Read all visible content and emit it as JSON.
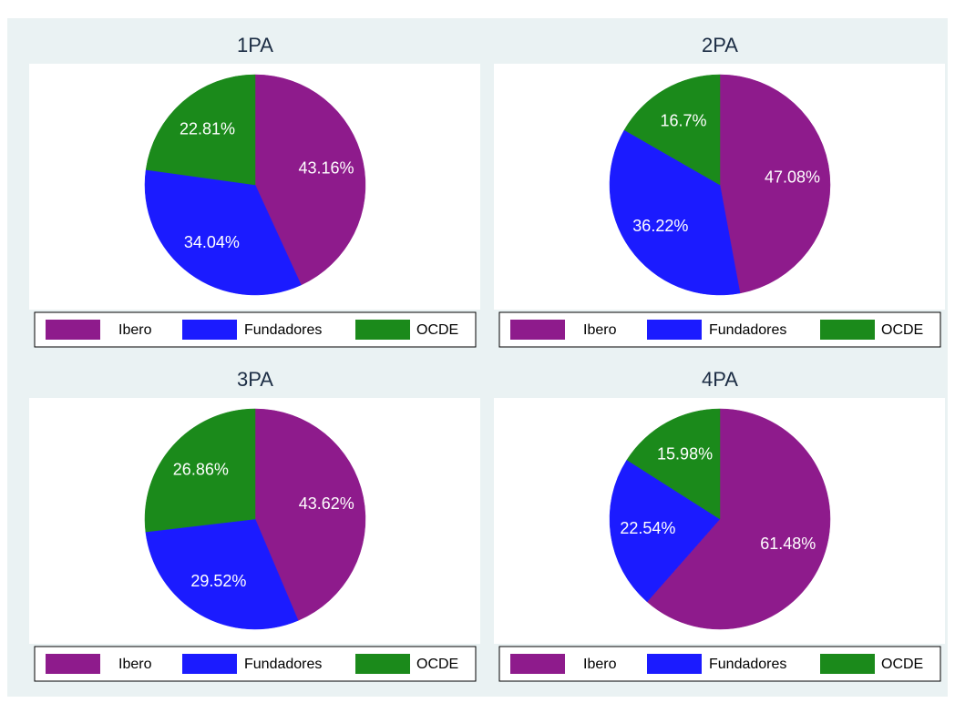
{
  "chart_data": [
    {
      "type": "pie",
      "title": "1PA",
      "categories": [
        "Ibero",
        "Fundadores",
        "OCDE"
      ],
      "values": [
        43.16,
        34.04,
        22.81
      ],
      "value_labels": [
        "43.16%",
        "34.04%",
        "22.81%"
      ],
      "colors": [
        "#8e1b8c",
        "#1b1bff",
        "#1b8a1b"
      ]
    },
    {
      "type": "pie",
      "title": "2PA",
      "categories": [
        "Ibero",
        "Fundadores",
        "OCDE"
      ],
      "values": [
        47.08,
        36.22,
        16.7
      ],
      "value_labels": [
        "47.08%",
        "36.22%",
        "16.7%"
      ],
      "colors": [
        "#8e1b8c",
        "#1b1bff",
        "#1b8a1b"
      ]
    },
    {
      "type": "pie",
      "title": "3PA",
      "categories": [
        "Ibero",
        "Fundadores",
        "OCDE"
      ],
      "values": [
        43.62,
        29.52,
        26.86
      ],
      "value_labels": [
        "43.62%",
        "29.52%",
        "26.86%"
      ],
      "colors": [
        "#8e1b8c",
        "#1b1bff",
        "#1b8a1b"
      ]
    },
    {
      "type": "pie",
      "title": "4PA",
      "categories": [
        "Ibero",
        "Fundadores",
        "OCDE"
      ],
      "values": [
        61.48,
        22.54,
        15.98
      ],
      "value_labels": [
        "61.48%",
        "22.54%",
        "15.98%"
      ],
      "colors": [
        "#8e1b8c",
        "#1b1bff",
        "#1b8a1b"
      ]
    }
  ]
}
